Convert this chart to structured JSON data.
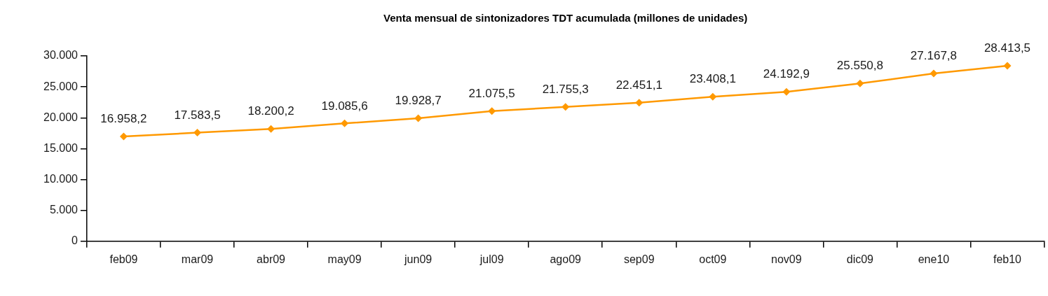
{
  "chart_data": {
    "type": "line",
    "title": "Venta mensual de sintonizadores TDT acumulada (millones de unidades)",
    "categories": [
      "feb09",
      "mar09",
      "abr09",
      "may09",
      "jun09",
      "jul09",
      "ago09",
      "sep09",
      "oct09",
      "nov09",
      "dic09",
      "ene10",
      "feb10"
    ],
    "values": [
      16958.2,
      17583.5,
      18200.2,
      19085.6,
      19928.7,
      21075.5,
      21755.3,
      22451.1,
      23408.1,
      24192.9,
      25550.8,
      27167.8,
      28413.5
    ],
    "value_labels": [
      "16.958,2",
      "17.583,5",
      "18.200,2",
      "19.085,6",
      "19.928,7",
      "21.075,5",
      "21.755,3",
      "22.451,1",
      "23.408,1",
      "24.192,9",
      "25.550,8",
      "27.167,8",
      "28.413,5"
    ],
    "color": "#ff9900",
    "marker": "diamond",
    "line_style": "solid",
    "grid": false,
    "ylim": [
      0,
      30000
    ],
    "yticks": [
      0,
      {
        "value": 5000,
        "label": "5.000"
      },
      {
        "value": 10000,
        "label": "10.000"
      },
      {
        "value": 15000,
        "label": "15.000"
      },
      {
        "value": 20000,
        "label": "20.000"
      },
      {
        "value": 25000,
        "label": "25.000"
      },
      {
        "value": 30000,
        "label": "30.000"
      }
    ]
  }
}
